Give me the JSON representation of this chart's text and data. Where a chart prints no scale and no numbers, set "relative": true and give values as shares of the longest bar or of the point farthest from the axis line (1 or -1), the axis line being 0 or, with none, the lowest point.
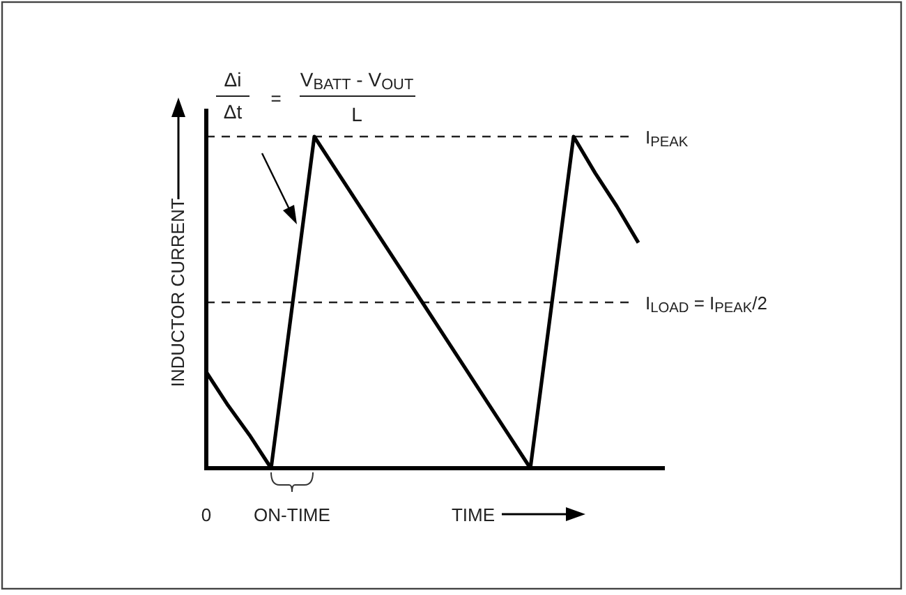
{
  "chart_data": {
    "type": "line",
    "relative": true,
    "xlabel": "TIME",
    "ylabel": "INDUCTOR CURRENT",
    "categories": [
      null,
      null,
      null,
      null,
      null,
      null,
      null,
      null,
      null,
      null,
      null,
      null,
      null,
      null,
      null,
      null,
      null,
      null,
      null,
      null,
      null
    ],
    "series": [
      {
        "color": "#000000",
        "values": [
          0.29,
          0.19,
          0.1,
          0,
          0.5,
          1,
          0.9,
          0.8,
          0.7,
          0.6,
          0.5,
          0.4,
          0.3,
          0.2,
          0.1,
          0,
          0.5,
          1,
          0.89,
          0.79,
          0.68
        ]
      }
    ],
    "ref_lines": [
      {
        "axis": "y",
        "value": 1,
        "label": "I$_{PEAK}$",
        "line_style": "dashed"
      },
      {
        "axis": "y",
        "value": 0.5,
        "label": "I$_{LOAD}$ = I$_{PEAK}$/2",
        "line_style": "dashed"
      }
    ],
    "annotations": [
      "Δi",
      "Δt",
      "=",
      "V$_{BATT}$ - V$_{OUT}$",
      "L",
      "ON-TIME",
      "0"
    ]
  }
}
